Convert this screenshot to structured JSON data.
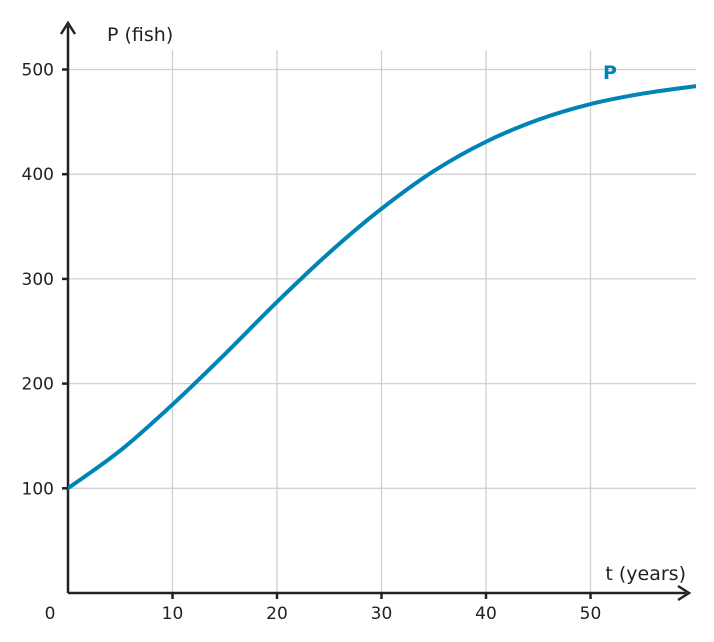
{
  "chart_data": {
    "type": "line",
    "title": "",
    "xlabel": "t (years)",
    "ylabel": "P (fish)",
    "xlim": [
      0,
      60
    ],
    "ylim": [
      0,
      540
    ],
    "grid": true,
    "x_ticks": [
      10,
      20,
      30,
      40,
      50
    ],
    "y_ticks": [
      100,
      200,
      300,
      400,
      500
    ],
    "origin_label": "0",
    "series": [
      {
        "name": "P",
        "color": "#0083b5",
        "x": [
          0,
          5,
          10,
          15,
          20,
          25,
          30,
          35,
          40,
          45,
          50,
          55,
          60
        ],
        "y": [
          100,
          136,
          180,
          228,
          278,
          325,
          367,
          403,
          431,
          452,
          467,
          477,
          484
        ]
      }
    ]
  }
}
